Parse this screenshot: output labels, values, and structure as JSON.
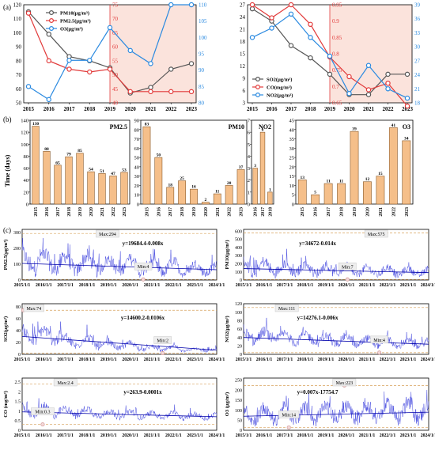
{
  "panel_labels": [
    "(a)",
    "(b)",
    "(c)"
  ],
  "chart_data": [
    {
      "type": "line",
      "panel": "a-left",
      "x": [
        "2015",
        "2016",
        "2017",
        "2018",
        "2019",
        "2020",
        "2021",
        "2022",
        "2023"
      ],
      "left_ticks": [
        50,
        60,
        70,
        80,
        90,
        100,
        110,
        120
      ],
      "mid_ticks": [
        40,
        45,
        50,
        55,
        60,
        65,
        70,
        75
      ],
      "right_ticks": [
        80,
        85,
        90,
        95,
        100,
        105,
        110
      ],
      "series": [
        {
          "name": "PM10(μg/m³)",
          "axis": "left",
          "color": "#555555",
          "values": [
            115,
            99,
            83,
            80,
            75,
            57,
            61,
            74,
            78
          ]
        },
        {
          "name": "PM2.5(μg/m³)",
          "axis": "mid",
          "color": "#e23b3b",
          "values": [
            72,
            55,
            52,
            51,
            52,
            44,
            44,
            44,
            44
          ]
        },
        {
          "name": "O3(μg/m³)",
          "axis": "right",
          "color": "#2b8ae0",
          "values": [
            85,
            81,
            93,
            93,
            103,
            96,
            92,
            110,
            110
          ]
        }
      ]
    },
    {
      "type": "line",
      "panel": "a-right",
      "x": [
        "2015",
        "2016",
        "2017",
        "2018",
        "2019",
        "2020",
        "2021",
        "2022",
        "2023"
      ],
      "left_ticks": [
        3,
        6,
        9,
        12,
        15,
        18,
        21,
        24,
        27
      ],
      "mid_ticks": [
        0.65,
        0.7,
        0.75,
        0.8,
        0.85,
        0.9,
        0.95
      ],
      "right_ticks": [
        18,
        21,
        24,
        27,
        30,
        33,
        36,
        39
      ],
      "series": [
        {
          "name": "SO2(μg/m³)",
          "axis": "left",
          "color": "#555555",
          "values": [
            26,
            23,
            17,
            14,
            10,
            5,
            5,
            10,
            10
          ]
        },
        {
          "name": "CO(mg/m³)",
          "axis": "mid",
          "color": "#e23b3b",
          "values": [
            0.95,
            0.91,
            0.95,
            0.89,
            0.79,
            0.73,
            0.69,
            0.71,
            0.64
          ]
        },
        {
          "name": "NO2(μg/m³)",
          "axis": "right",
          "color": "#2b8ae0",
          "values": [
            32,
            34,
            37,
            32,
            28,
            20,
            26,
            21,
            19
          ]
        }
      ]
    },
    {
      "type": "bar",
      "panel": "b",
      "ylabel": "Time (days)",
      "groups": [
        {
          "label": "PM2.5",
          "categories": [
            "2015",
            "2016",
            "2017",
            "2018",
            "2019",
            "2020",
            "2021",
            "2022",
            "2023"
          ],
          "values": [
            130,
            88,
            65,
            79,
            85,
            54,
            51,
            47,
            53
          ],
          "ymax": 140,
          "ticks": [
            0,
            20,
            40,
            60,
            80,
            100,
            120,
            140
          ]
        },
        {
          "label": "PM10",
          "categories": [
            "2015",
            "2016",
            "2017",
            "2018",
            "2019",
            "2020",
            "2021",
            "2022",
            "2023"
          ],
          "values": [
            83,
            50,
            18,
            25,
            16,
            2,
            11,
            20,
            37
          ],
          "ymax": 90,
          "ticks": [
            0,
            10,
            20,
            30,
            40,
            50,
            60,
            70,
            80,
            90
          ]
        },
        {
          "label": "NO2",
          "categories": [
            "2016",
            "2017",
            "2018"
          ],
          "values": [
            3,
            6,
            1
          ],
          "ymax": 7,
          "ticks": [
            0,
            1,
            2,
            3,
            4,
            5,
            6,
            7
          ]
        },
        {
          "label": "O3",
          "categories": [
            "2015",
            "2016",
            "2017",
            "2018",
            "2019",
            "2020",
            "2021",
            "2022",
            "2023"
          ],
          "values": [
            13,
            5,
            11,
            11,
            39,
            12,
            15,
            41,
            34
          ],
          "ymax": 45,
          "ticks": [
            0,
            5,
            10,
            15,
            20,
            25,
            30,
            35,
            40,
            45
          ]
        }
      ]
    },
    {
      "type": "line",
      "panel": "c",
      "x_labels": [
        "2015/1/1",
        "2016/1/1",
        "2017/1/1",
        "2018/1/1",
        "2019/1/1",
        "2020/1/1",
        "2021/1/1",
        "2022/1/1",
        "2023/1/1",
        "2024/1/1"
      ],
      "plots": [
        {
          "ylabel": "PM2.5(μg/m³)",
          "ticks": [
            0,
            100,
            200,
            300
          ],
          "ymax": 320,
          "max_label": "Max:294",
          "max_value": 294,
          "max_x": 2018.95,
          "min_label": "Min:4",
          "min_value": 4,
          "min_x": 2020.6,
          "equation": "y=19684.4-0.008x",
          "base": [
            105,
            95,
            85,
            75,
            65
          ],
          "amp": [
            100,
            85,
            70,
            65,
            55
          ]
        },
        {
          "ylabel": "PM10(μg/m³)",
          "ticks": [
            0,
            100,
            200,
            300,
            400,
            500,
            600
          ],
          "ymax": 620,
          "max_label": "Max:575",
          "max_value": 575,
          "max_x": 2021.45,
          "min_label": "Min:7",
          "min_value": 7,
          "min_x": 2020.05,
          "equation": "y=34672-0.014x",
          "base": [
            140,
            125,
            110,
            100,
            90
          ],
          "amp": [
            130,
            110,
            95,
            85,
            75
          ]
        },
        {
          "ylabel": "SO2(μg/m³)",
          "ticks": [
            0,
            20,
            40,
            60,
            80
          ],
          "ymax": 85,
          "max_label": "Max:74",
          "max_value": 74,
          "max_x": 2015.05,
          "min_label": "Min:2",
          "min_value": 2,
          "min_x": 2021.5,
          "equation": "y=14600.2-0.0106x",
          "base": [
            30,
            20,
            14,
            9,
            7
          ],
          "amp": [
            18,
            14,
            9,
            6,
            4
          ]
        },
        {
          "ylabel": "NO2(μg/m³)",
          "ticks": [
            0,
            20,
            40,
            60,
            80,
            100,
            120
          ],
          "ymax": 120,
          "max_label": "Max:111",
          "max_value": 111,
          "max_x": 2017.1,
          "min_label": "Min:4",
          "min_value": 4,
          "min_x": 2021.6,
          "equation": "y=14276.1-0.006x",
          "base": [
            40,
            36,
            32,
            28,
            24
          ],
          "amp": [
            22,
            20,
            18,
            16,
            14
          ]
        },
        {
          "ylabel": "CO (mg/m³)",
          "ticks": [
            0.0,
            0.5,
            1.0,
            1.5,
            2.0,
            2.5
          ],
          "ymax": 2.7,
          "max_label": "Max:2.4",
          "max_value": 2.4,
          "max_x": 2017.0,
          "min_label": "Min:0.3",
          "min_value": 0.3,
          "min_x": 2015.95,
          "equation": "y=263.9-0.0001x",
          "base": [
            0.95,
            0.9,
            0.8,
            0.75,
            0.7
          ],
          "amp": [
            0.4,
            0.35,
            0.3,
            0.25,
            0.22
          ]
        },
        {
          "ylabel": "O3 (μg/m³)",
          "ticks": [
            0,
            50,
            100,
            150,
            200,
            250
          ],
          "ymax": 260,
          "max_label": "Max:223",
          "max_value": 223,
          "max_x": 2019.9,
          "min_label": "Min:14",
          "min_value": 14,
          "min_x": 2017.2,
          "equation": "y=0.007x-17754.7",
          "base": [
            70,
            75,
            80,
            85,
            90
          ],
          "amp": [
            55,
            60,
            60,
            65,
            70
          ]
        }
      ]
    }
  ]
}
